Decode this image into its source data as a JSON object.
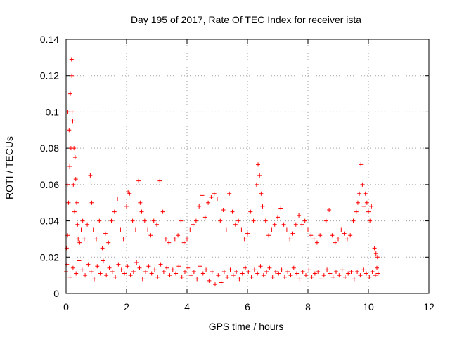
{
  "chart_data": {
    "type": "scatter",
    "title": "Day 195 of 2017, Rate Of TEC Index for receiver ista",
    "xlabel": "GPS time / hours",
    "ylabel": "ROTI / TECUs",
    "xlim": [
      0,
      12
    ],
    "ylim": [
      0,
      0.14
    ],
    "x_ticks": [
      0,
      2,
      4,
      6,
      8,
      10,
      12
    ],
    "x_tick_labels": [
      "0",
      "2",
      "4",
      "6",
      "8",
      "10",
      "12"
    ],
    "y_ticks": [
      0,
      0.02,
      0.04,
      0.06,
      0.08,
      0.1,
      0.12,
      0.14
    ],
    "y_tick_labels": [
      "0",
      "0.02",
      "0.04",
      "0.06",
      "0.08",
      "0.1",
      "0.12",
      "0.14"
    ],
    "grid": true,
    "marker": "+",
    "color": "#ff0000",
    "series": [
      {
        "name": "ROTI",
        "points": [
          [
            0.0,
            0.012
          ],
          [
            0.02,
            0.025
          ],
          [
            0.04,
            0.06
          ],
          [
            0.05,
            0.032
          ],
          [
            0.06,
            0.1
          ],
          [
            0.08,
            0.05
          ],
          [
            0.1,
            0.09
          ],
          [
            0.12,
            0.07
          ],
          [
            0.14,
            0.11
          ],
          [
            0.16,
            0.08
          ],
          [
            0.18,
            0.129
          ],
          [
            0.19,
            0.12
          ],
          [
            0.2,
            0.1
          ],
          [
            0.22,
            0.095
          ],
          [
            0.24,
            0.06
          ],
          [
            0.26,
            0.08
          ],
          [
            0.28,
            0.045
          ],
          [
            0.3,
            0.075
          ],
          [
            0.32,
            0.063
          ],
          [
            0.35,
            0.05
          ],
          [
            0.38,
            0.038
          ],
          [
            0.4,
            0.03
          ],
          [
            0.45,
            0.028
          ],
          [
            0.5,
            0.035
          ],
          [
            0.55,
            0.04
          ],
          [
            0.6,
            0.03
          ],
          [
            0.7,
            0.038
          ],
          [
            0.8,
            0.065
          ],
          [
            0.85,
            0.05
          ],
          [
            0.9,
            0.035
          ],
          [
            1.0,
            0.03
          ],
          [
            1.1,
            0.04
          ],
          [
            1.2,
            0.025
          ],
          [
            1.3,
            0.033
          ],
          [
            1.4,
            0.028
          ],
          [
            1.5,
            0.04
          ],
          [
            1.6,
            0.045
          ],
          [
            1.7,
            0.052
          ],
          [
            1.8,
            0.035
          ],
          [
            1.9,
            0.03
          ],
          [
            2.0,
            0.048
          ],
          [
            2.05,
            0.056
          ],
          [
            2.1,
            0.055
          ],
          [
            2.2,
            0.04
          ],
          [
            2.3,
            0.035
          ],
          [
            2.4,
            0.062
          ],
          [
            2.45,
            0.05
          ],
          [
            2.5,
            0.045
          ],
          [
            2.6,
            0.04
          ],
          [
            2.7,
            0.035
          ],
          [
            2.8,
            0.032
          ],
          [
            2.9,
            0.04
          ],
          [
            3.0,
            0.038
          ],
          [
            3.1,
            0.062
          ],
          [
            3.2,
            0.045
          ],
          [
            3.3,
            0.03
          ],
          [
            3.4,
            0.028
          ],
          [
            3.5,
            0.035
          ],
          [
            3.6,
            0.03
          ],
          [
            3.7,
            0.032
          ],
          [
            3.8,
            0.04
          ],
          [
            3.9,
            0.028
          ],
          [
            4.0,
            0.03
          ],
          [
            4.1,
            0.035
          ],
          [
            4.2,
            0.038
          ],
          [
            4.3,
            0.04
          ],
          [
            4.4,
            0.048
          ],
          [
            4.5,
            0.054
          ],
          [
            4.6,
            0.042
          ],
          [
            4.7,
            0.05
          ],
          [
            4.8,
            0.053
          ],
          [
            4.9,
            0.055
          ],
          [
            5.0,
            0.052
          ],
          [
            5.1,
            0.04
          ],
          [
            5.2,
            0.046
          ],
          [
            5.3,
            0.035
          ],
          [
            5.4,
            0.055
          ],
          [
            5.5,
            0.045
          ],
          [
            5.6,
            0.038
          ],
          [
            5.7,
            0.04
          ],
          [
            5.8,
            0.035
          ],
          [
            5.9,
            0.03
          ],
          [
            6.0,
            0.033
          ],
          [
            6.1,
            0.045
          ],
          [
            6.2,
            0.04
          ],
          [
            6.3,
            0.06
          ],
          [
            6.35,
            0.071
          ],
          [
            6.4,
            0.065
          ],
          [
            6.45,
            0.055
          ],
          [
            6.5,
            0.048
          ],
          [
            6.6,
            0.04
          ],
          [
            6.7,
            0.032
          ],
          [
            6.8,
            0.035
          ],
          [
            6.9,
            0.038
          ],
          [
            7.0,
            0.042
          ],
          [
            7.1,
            0.047
          ],
          [
            7.2,
            0.038
          ],
          [
            7.3,
            0.035
          ],
          [
            7.4,
            0.03
          ],
          [
            7.5,
            0.033
          ],
          [
            7.6,
            0.038
          ],
          [
            7.7,
            0.043
          ],
          [
            7.8,
            0.038
          ],
          [
            7.9,
            0.04
          ],
          [
            8.0,
            0.035
          ],
          [
            8.1,
            0.032
          ],
          [
            8.2,
            0.03
          ],
          [
            8.3,
            0.028
          ],
          [
            8.4,
            0.032
          ],
          [
            8.5,
            0.035
          ],
          [
            8.6,
            0.04
          ],
          [
            8.7,
            0.046
          ],
          [
            8.8,
            0.032
          ],
          [
            8.9,
            0.028
          ],
          [
            9.0,
            0.03
          ],
          [
            9.1,
            0.035
          ],
          [
            9.2,
            0.033
          ],
          [
            9.3,
            0.03
          ],
          [
            9.4,
            0.032
          ],
          [
            9.5,
            0.04
          ],
          [
            9.6,
            0.045
          ],
          [
            9.65,
            0.05
          ],
          [
            9.7,
            0.055
          ],
          [
            9.75,
            0.071
          ],
          [
            9.8,
            0.06
          ],
          [
            9.85,
            0.048
          ],
          [
            9.9,
            0.055
          ],
          [
            9.95,
            0.05
          ],
          [
            10.0,
            0.045
          ],
          [
            10.05,
            0.04
          ],
          [
            10.1,
            0.048
          ],
          [
            10.15,
            0.035
          ],
          [
            10.2,
            0.025
          ],
          [
            10.25,
            0.022
          ],
          [
            10.3,
            0.02
          ],
          [
            0.03,
            0.016
          ],
          [
            0.13,
            0.009
          ],
          [
            0.23,
            0.014
          ],
          [
            0.33,
            0.011
          ],
          [
            0.43,
            0.018
          ],
          [
            0.53,
            0.013
          ],
          [
            0.63,
            0.01
          ],
          [
            0.73,
            0.016
          ],
          [
            0.83,
            0.012
          ],
          [
            0.93,
            0.008
          ],
          [
            1.03,
            0.015
          ],
          [
            1.13,
            0.011
          ],
          [
            1.23,
            0.018
          ],
          [
            1.33,
            0.01
          ],
          [
            1.43,
            0.014
          ],
          [
            1.53,
            0.012
          ],
          [
            1.63,
            0.009
          ],
          [
            1.73,
            0.016
          ],
          [
            1.83,
            0.013
          ],
          [
            1.93,
            0.011
          ],
          [
            2.03,
            0.015
          ],
          [
            2.13,
            0.01
          ],
          [
            2.23,
            0.012
          ],
          [
            2.33,
            0.017
          ],
          [
            2.43,
            0.014
          ],
          [
            2.53,
            0.008
          ],
          [
            2.63,
            0.012
          ],
          [
            2.73,
            0.015
          ],
          [
            2.83,
            0.011
          ],
          [
            2.93,
            0.013
          ],
          [
            3.03,
            0.009
          ],
          [
            3.13,
            0.016
          ],
          [
            3.23,
            0.012
          ],
          [
            3.33,
            0.014
          ],
          [
            3.43,
            0.01
          ],
          [
            3.53,
            0.013
          ],
          [
            3.63,
            0.011
          ],
          [
            3.73,
            0.015
          ],
          [
            3.83,
            0.009
          ],
          [
            3.93,
            0.012
          ],
          [
            4.03,
            0.014
          ],
          [
            4.13,
            0.01
          ],
          [
            4.23,
            0.012
          ],
          [
            4.33,
            0.008
          ],
          [
            4.43,
            0.015
          ],
          [
            4.53,
            0.011
          ],
          [
            4.63,
            0.013
          ],
          [
            4.73,
            0.007
          ],
          [
            4.83,
            0.012
          ],
          [
            4.93,
            0.005
          ],
          [
            5.03,
            0.01
          ],
          [
            5.13,
            0.006
          ],
          [
            5.23,
            0.012
          ],
          [
            5.33,
            0.009
          ],
          [
            5.43,
            0.013
          ],
          [
            5.53,
            0.01
          ],
          [
            5.63,
            0.012
          ],
          [
            5.73,
            0.008
          ],
          [
            5.83,
            0.011
          ],
          [
            5.93,
            0.014
          ],
          [
            6.03,
            0.012
          ],
          [
            6.13,
            0.009
          ],
          [
            6.23,
            0.013
          ],
          [
            6.33,
            0.011
          ],
          [
            6.43,
            0.015
          ],
          [
            6.53,
            0.01
          ],
          [
            6.63,
            0.012
          ],
          [
            6.73,
            0.014
          ],
          [
            6.83,
            0.009
          ],
          [
            6.93,
            0.012
          ],
          [
            7.03,
            0.011
          ],
          [
            7.13,
            0.013
          ],
          [
            7.23,
            0.009
          ],
          [
            7.33,
            0.012
          ],
          [
            7.43,
            0.01
          ],
          [
            7.53,
            0.014
          ],
          [
            7.63,
            0.011
          ],
          [
            7.73,
            0.008
          ],
          [
            7.83,
            0.012
          ],
          [
            7.93,
            0.01
          ],
          [
            8.03,
            0.013
          ],
          [
            8.13,
            0.009
          ],
          [
            8.23,
            0.011
          ],
          [
            8.33,
            0.012
          ],
          [
            8.43,
            0.008
          ],
          [
            8.53,
            0.01
          ],
          [
            8.63,
            0.013
          ],
          [
            8.73,
            0.011
          ],
          [
            8.83,
            0.009
          ],
          [
            8.93,
            0.012
          ],
          [
            9.03,
            0.01
          ],
          [
            9.13,
            0.013
          ],
          [
            9.23,
            0.009
          ],
          [
            9.33,
            0.011
          ],
          [
            9.43,
            0.012
          ],
          [
            9.53,
            0.008
          ],
          [
            9.63,
            0.012
          ],
          [
            9.73,
            0.01
          ],
          [
            9.83,
            0.013
          ],
          [
            9.93,
            0.011
          ],
          [
            10.03,
            0.009
          ],
          [
            10.13,
            0.012
          ],
          [
            10.23,
            0.01
          ],
          [
            10.28,
            0.014
          ],
          [
            10.32,
            0.011
          ]
        ]
      }
    ]
  }
}
